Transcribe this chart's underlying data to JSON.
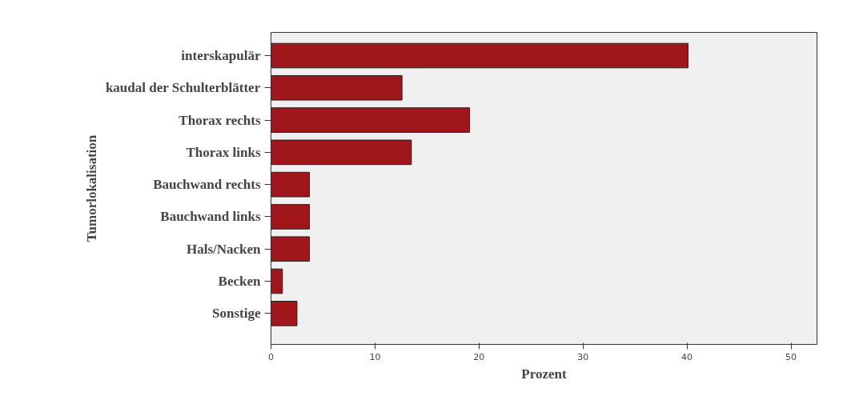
{
  "chart_data": {
    "type": "bar",
    "orientation": "horizontal",
    "xlabel": "Prozent",
    "ylabel": "Tumorlokalisation",
    "categories": [
      "interskapulär",
      "kaudal der Schulterblätter",
      "Thorax rechts",
      "Thorax links",
      "Bauchwand rechts",
      "Bauchwand links",
      "Hals/Nacken",
      "Becken",
      "Sonstige"
    ],
    "values": [
      40.1,
      12.6,
      19.1,
      13.5,
      3.7,
      3.7,
      3.7,
      1.1,
      2.5
    ],
    "color": "#a0161a",
    "xlim": [
      0,
      52.5
    ],
    "xticks": [
      0,
      10,
      20,
      30,
      40,
      50
    ]
  }
}
